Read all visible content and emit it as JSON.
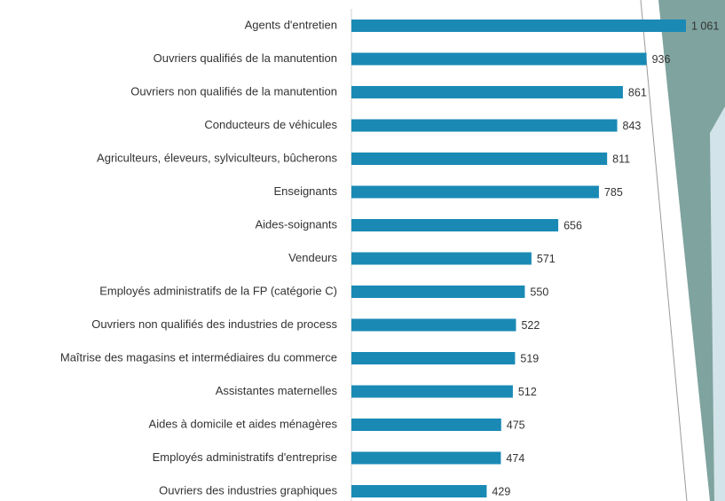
{
  "chart_data": {
    "type": "bar",
    "orientation": "horizontal",
    "categories": [
      "Agents d'entretien",
      "Ouvriers qualifiés de la manutention",
      "Ouvriers non qualifiés de la manutention",
      "Conducteurs de véhicules",
      "Agriculteurs, éleveurs, sylviculteurs, bûcherons",
      "Enseignants",
      "Aides-soignants",
      "Vendeurs",
      "Employés administratifs de la FP (catégorie C)",
      "Ouvriers non qualifiés des industries de process",
      "Maîtrise des magasins et intermédiaires du commerce",
      "Assistantes maternelles",
      "Aides à domicile et aides ménagères",
      "Employés administratifs d'entreprise",
      "Ouvriers des industries graphiques"
    ],
    "values": [
      1061,
      936,
      861,
      843,
      811,
      785,
      656,
      571,
      550,
      522,
      519,
      512,
      475,
      474,
      429
    ],
    "value_labels": [
      "1 061",
      "936",
      "861",
      "843",
      "811",
      "785",
      "656",
      "571",
      "550",
      "522",
      "519",
      "512",
      "475",
      "474",
      "429"
    ],
    "color": "#1a8ab5"
  }
}
